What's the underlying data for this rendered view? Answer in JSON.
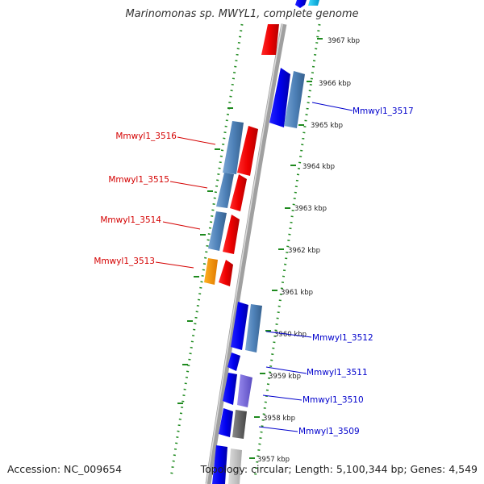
{
  "title": "Marinomonas sp. MWYL1, complete genome",
  "footer": {
    "accession": "Accession: NC_009654",
    "summary": "Topology: circular; Length: 5,100,344 bp; Genes: 4,549"
  },
  "colors": {
    "backbone": "#9a9a9a",
    "tick_line": "#1e8a1e",
    "reverse_label": "#d40000",
    "forward_label": "#0000cc"
  },
  "kbp_labels": [
    "3967 kbp",
    "3966 kbp",
    "3965 kbp",
    "3964 kbp",
    "3963 kbp",
    "3962 kbp",
    "3961 kbp",
    "3960 kbp",
    "3959 kbp",
    "3958 kbp",
    "3957 kbp"
  ],
  "genes_left": [
    "Mmwyl1_3516",
    "Mmwyl1_3515",
    "Mmwyl1_3514",
    "Mmwyl1_3513"
  ],
  "genes_right": [
    "Mmwyl1_3517",
    "Mmwyl1_3512",
    "Mmwyl1_3511",
    "Mmwyl1_3510",
    "Mmwyl1_3509"
  ]
}
